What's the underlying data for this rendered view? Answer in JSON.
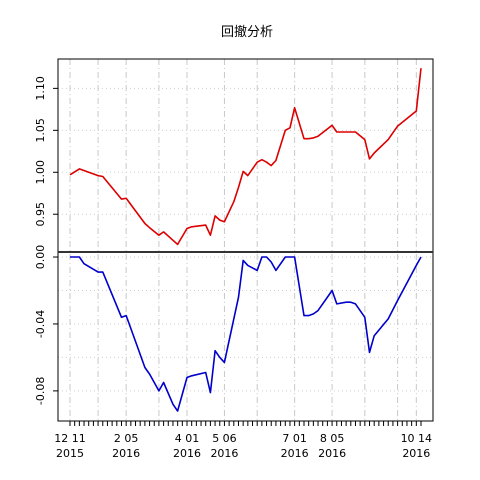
{
  "chart_data": {
    "type": "line",
    "title": "回撤分析",
    "xlabel": "",
    "x_tick_labels": [
      {
        "i": 0,
        "lines": [
          "12 11",
          "2015"
        ]
      },
      {
        "i": 12,
        "lines": [
          "2 05",
          "2016"
        ]
      },
      {
        "i": 25,
        "lines": [
          "4 01",
          "2016"
        ]
      },
      {
        "i": 33,
        "lines": [
          "5 06",
          "2016"
        ]
      },
      {
        "i": 48,
        "lines": [
          "7 01",
          "2016"
        ]
      },
      {
        "i": 56,
        "lines": [
          "8 05",
          "2016"
        ]
      },
      {
        "i": 74,
        "lines": [
          "10 14",
          "2016"
        ]
      }
    ],
    "x_range": [
      0,
      75
    ],
    "vgrid_at": [
      0,
      6,
      12,
      19,
      25,
      33,
      40,
      48,
      56,
      63,
      70,
      74
    ],
    "panels": [
      {
        "name": "top",
        "ylabel": "",
        "ylim": [
          0.905,
          1.135
        ],
        "yticks": [
          0.95,
          1.0,
          1.05,
          1.1
        ],
        "ytick_labels": [
          "0.95",
          "1.00",
          "1.05",
          "1.10"
        ],
        "hgrid_at": [
          0.95,
          1.0,
          1.05,
          1.1
        ],
        "series": [
          {
            "color": "#dd0000",
            "x": [
              0,
              2,
              6,
              7,
              11,
              12,
              16,
              17,
              19,
              20,
              22,
              23,
              25,
              26,
              29,
              30,
              31,
              32,
              33,
              35,
              36,
              37,
              38,
              40,
              41,
              42,
              43,
              44,
              46,
              47,
              48,
              50,
              51,
              52,
              53,
              56,
              57,
              59,
              60,
              61,
              63,
              64,
              65,
              68,
              70,
              74,
              75
            ],
            "values": [
              0.997,
              1.004,
              0.996,
              0.995,
              0.968,
              0.969,
              0.939,
              0.934,
              0.925,
              0.929,
              0.919,
              0.914,
              0.933,
              0.935,
              0.937,
              0.925,
              0.948,
              0.943,
              0.941,
              0.965,
              0.982,
              1.001,
              0.996,
              1.012,
              1.015,
              1.012,
              1.008,
              1.014,
              1.05,
              1.053,
              1.077,
              1.04,
              1.04,
              1.041,
              1.043,
              1.056,
              1.048,
              1.048,
              1.048,
              1.048,
              1.039,
              1.016,
              1.023,
              1.039,
              1.055,
              1.073,
              1.124
            ]
          }
        ]
      },
      {
        "name": "bottom",
        "ylabel": "",
        "ylim": [
          -0.098,
          0.003
        ],
        "yticks": [
          0.0,
          -0.04,
          -0.08
        ],
        "ytick_labels": [
          "0.00",
          "-0.04",
          "-0.08"
        ],
        "hgrid_at": [
          0.0,
          -0.02,
          -0.04,
          -0.06,
          -0.08
        ],
        "series": [
          {
            "color": "#0000cc",
            "x": [
              0,
              2,
              3,
              6,
              7,
              11,
              12,
              16,
              17,
              19,
              20,
              22,
              23,
              25,
              26,
              29,
              30,
              31,
              32,
              33,
              35,
              36,
              37,
              38,
              40,
              41,
              42,
              43,
              44,
              46,
              47,
              48,
              50,
              51,
              52,
              53,
              56,
              57,
              59,
              60,
              61,
              63,
              64,
              65,
              68,
              70,
              74,
              75
            ],
            "values": [
              0.0,
              0.0,
              -0.004,
              -0.009,
              -0.009,
              -0.036,
              -0.035,
              -0.066,
              -0.07,
              -0.08,
              -0.075,
              -0.088,
              -0.092,
              -0.072,
              -0.071,
              -0.069,
              -0.081,
              -0.056,
              -0.06,
              -0.063,
              -0.037,
              -0.024,
              -0.002,
              -0.005,
              -0.008,
              0.0,
              0.0,
              -0.003,
              -0.008,
              0.0,
              0.0,
              0.0,
              -0.035,
              -0.035,
              -0.034,
              -0.032,
              -0.02,
              -0.028,
              -0.027,
              -0.027,
              -0.028,
              -0.036,
              -0.057,
              -0.047,
              -0.037,
              -0.026,
              -0.005,
              0.0
            ]
          }
        ]
      }
    ],
    "grid": true,
    "legend": "none"
  }
}
